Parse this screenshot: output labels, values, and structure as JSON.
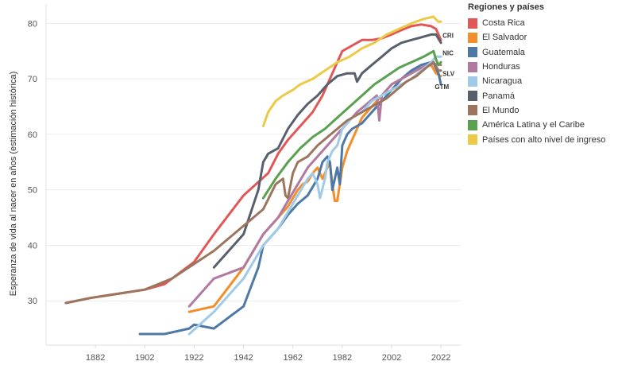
{
  "chart_data": {
    "type": "line",
    "ylabel": "Esperanza de vida al nacer en años (estimación histórica)",
    "xlabel": "",
    "xlim": [
      1862,
      2030
    ],
    "ylim": [
      22,
      83.5
    ],
    "xticks": [
      1882,
      1902,
      1922,
      1942,
      1962,
      1982,
      2002,
      2022
    ],
    "yticks": [
      30,
      40,
      50,
      60,
      70,
      80
    ],
    "legend_title": "Regiones y países",
    "series": [
      {
        "name": "Costa Rica",
        "color": "#e15759",
        "end_label": "CRI",
        "x": [
          1870,
          1880,
          1902,
          1910,
          1922,
          1930,
          1942,
          1952,
          1956,
          1960,
          1964,
          1970,
          1974,
          1978,
          1982,
          1986,
          1990,
          1994,
          1998,
          2002,
          2006,
          2010,
          2014,
          2018,
          2020,
          2022
        ],
        "y": [
          29.6,
          30.5,
          32,
          33,
          37,
          42,
          49,
          53,
          56.5,
          59,
          61,
          64,
          67,
          71,
          75,
          76,
          77,
          77,
          77.3,
          78,
          78.8,
          79.5,
          79.8,
          79.5,
          79,
          77
        ]
      },
      {
        "name": "El Salvador",
        "color": "#f28e2b",
        "end_label": "SLV",
        "x": [
          1920,
          1930,
          1942,
          1950,
          1956,
          1960,
          1964,
          1966,
          1968,
          1970,
          1972,
          1974,
          1976,
          1977,
          1978,
          1979,
          1980,
          1981,
          1982,
          1984,
          1986,
          1988,
          1990,
          1994,
          1998,
          2002,
          2006,
          2010,
          2014,
          2018,
          2020,
          2022
        ],
        "y": [
          28,
          29,
          36,
          42,
          45,
          47,
          50,
          51,
          51.5,
          53,
          54,
          52,
          54,
          55,
          51,
          48,
          48,
          51,
          54,
          57,
          59,
          61,
          63,
          65,
          67,
          69,
          70,
          71,
          72,
          72.5,
          71,
          70.5
        ]
      },
      {
        "name": "Guatemala",
        "color": "#4e79a7",
        "end_label": "GTM",
        "x": [
          1900,
          1910,
          1920,
          1922,
          1930,
          1942,
          1948,
          1950,
          1952,
          1956,
          1960,
          1964,
          1968,
          1972,
          1974,
          1976,
          1977,
          1978,
          1980,
          1981,
          1982,
          1984,
          1986,
          1990,
          1994,
          1998,
          2002,
          2006,
          2010,
          2014,
          2018,
          2019,
          2021,
          2022
        ],
        "y": [
          24,
          24,
          25,
          25.7,
          25,
          29,
          36,
          40,
          41,
          43,
          45.5,
          47.5,
          49,
          52,
          55,
          56,
          55,
          50,
          54,
          51,
          58,
          60,
          61,
          62,
          64,
          66,
          68,
          70,
          71.5,
          72.5,
          73,
          72.8,
          71,
          69
        ]
      },
      {
        "name": "Honduras",
        "color": "#b07aa1",
        "end_label": "",
        "x": [
          1920,
          1930,
          1942,
          1950,
          1956,
          1960,
          1964,
          1968,
          1972,
          1976,
          1980,
          1984,
          1988,
          1992,
          1996,
          1997,
          1998,
          2002,
          2006,
          2010,
          2014,
          2018,
          2022
        ],
        "y": [
          29,
          34,
          36,
          42,
          45,
          48,
          51,
          54,
          56,
          58,
          60,
          62,
          64,
          65.5,
          67,
          62.5,
          67,
          69,
          70,
          71,
          72,
          72.8,
          72.5
        ]
      },
      {
        "name": "Nicaragua",
        "color": "#a0cbe8",
        "end_label": "NIC",
        "x": [
          1920,
          1930,
          1942,
          1950,
          1956,
          1960,
          1964,
          1968,
          1970,
          1972,
          1973,
          1975,
          1976,
          1978,
          1980,
          1982,
          1986,
          1990,
          1994,
          1998,
          2002,
          2006,
          2010,
          2014,
          2018,
          2020,
          2022
        ],
        "y": [
          24,
          28,
          34,
          40,
          43,
          46,
          49,
          52,
          53,
          51,
          48.5,
          52,
          55,
          57,
          58,
          61,
          63,
          64,
          66,
          67,
          68,
          69,
          70,
          71.5,
          73,
          74,
          74
        ]
      },
      {
        "name": "Panamá",
        "color": "#59606d",
        "end_label": "",
        "x": [
          1930,
          1942,
          1948,
          1950,
          1952,
          1956,
          1960,
          1964,
          1968,
          1972,
          1976,
          1980,
          1984,
          1987,
          1988,
          1990,
          1994,
          1998,
          2002,
          2006,
          2010,
          2014,
          2018,
          2020,
          2022
        ],
        "y": [
          36,
          42,
          50,
          55,
          56.5,
          57.5,
          61,
          63.5,
          65.5,
          67,
          69,
          70.5,
          71,
          71,
          69.5,
          71,
          72.5,
          74,
          75.5,
          76.5,
          77,
          77.5,
          78,
          78,
          76.5
        ]
      },
      {
        "name": "El Mundo",
        "color": "#9c755f",
        "end_label": "",
        "x": [
          1870,
          1880,
          1902,
          1913,
          1930,
          1950,
          1955,
          1958,
          1959,
          1960,
          1962,
          1964,
          1968,
          1972,
          1976,
          1980,
          1984,
          1988,
          1992,
          1996,
          2000,
          2004,
          2008,
          2012,
          2016,
          2019,
          2021,
          2022
        ],
        "y": [
          29.6,
          30.5,
          32,
          34,
          39,
          46.5,
          51,
          52,
          49,
          48.5,
          53,
          55,
          56,
          58,
          59.5,
          61,
          62.5,
          63.5,
          64.5,
          65.5,
          66.5,
          68,
          69.5,
          70.5,
          72,
          73,
          71.5,
          71.5
        ]
      },
      {
        "name": "América Latina y el Caribe",
        "color": "#59a14f",
        "end_label": "",
        "x": [
          1950,
          1955,
          1960,
          1965,
          1970,
          1975,
          1980,
          1985,
          1990,
          1995,
          2000,
          2005,
          2010,
          2015,
          2019,
          2020,
          2021,
          2022
        ],
        "y": [
          48.5,
          52,
          55,
          57.5,
          59.5,
          61,
          63,
          65,
          67,
          69,
          70.5,
          72,
          73,
          74,
          75,
          73.5,
          72.5,
          73
        ]
      },
      {
        "name": "Países con alto nivel de ingreso",
        "color": "#edc948",
        "end_label": "",
        "x": [
          1950,
          1952,
          1955,
          1958,
          1960,
          1962,
          1965,
          1970,
          1975,
          1980,
          1985,
          1990,
          1995,
          2000,
          2005,
          2010,
          2015,
          2019,
          2020,
          2021,
          2022
        ],
        "y": [
          61.5,
          64,
          66,
          67,
          67.5,
          68,
          69,
          70,
          71.5,
          73,
          74,
          75.5,
          76.5,
          78,
          79,
          80,
          80.8,
          81.2,
          80.7,
          80.3,
          80.3
        ]
      }
    ]
  }
}
